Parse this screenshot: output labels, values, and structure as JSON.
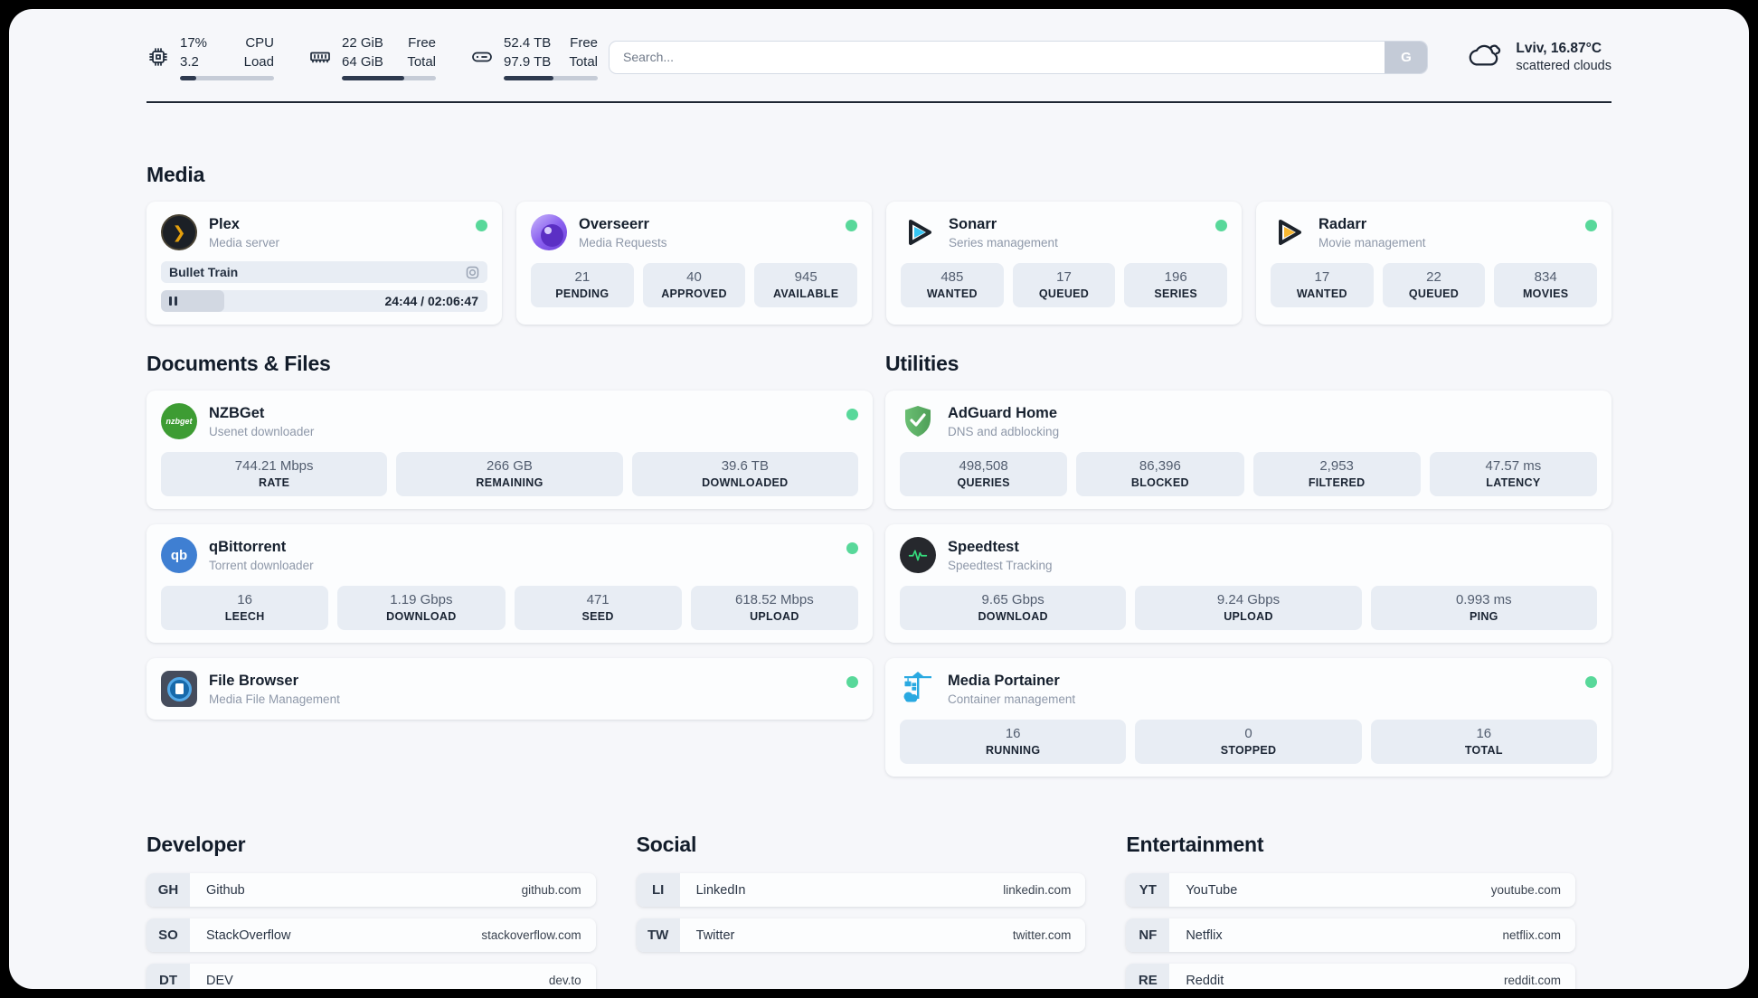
{
  "header": {
    "cpu": {
      "value_line1": "17%",
      "value_line2": "3.2",
      "label_line1": "CPU",
      "label_line2": "Load",
      "progress_pct": 17
    },
    "memory": {
      "value_line1": "22 GiB",
      "value_line2": "64 GiB",
      "label_line1": "Free",
      "label_line2": "Total",
      "progress_pct": 66
    },
    "disk": {
      "value_line1": "52.4 TB",
      "value_line2": "97.9 TB",
      "label_line1": "Free",
      "label_line2": "Total",
      "progress_pct": 53
    },
    "search": {
      "placeholder": "Search...",
      "button_label": "G"
    },
    "weather": {
      "summary": "Lviv, 16.87°C",
      "condition": "scattered clouds"
    }
  },
  "colors": {
    "status_online": "#58d89a",
    "progress_fill": "#2e3a4f",
    "plex_gold": "#e5a00d",
    "overseerr_purple": "#6d3fd8",
    "sonarr_cyan": "#36c6f4",
    "radarr_yellow": "#f7b731",
    "nzbget_green": "#3d9c33",
    "qbittorrent_blue": "#3f7fd2",
    "adguard_green": "#5fae67",
    "speedtest_green": "#35d97c",
    "portainer_blue": "#29a9e1"
  },
  "sections": {
    "media": {
      "title": "Media",
      "plex": {
        "name": "Plex",
        "subtitle": "Media server",
        "now_playing": "Bullet Train",
        "time_display": "24:44 / 02:06:47",
        "progress_pct": 19.5
      },
      "overseerr": {
        "name": "Overseerr",
        "subtitle": "Media Requests",
        "stats": [
          {
            "value": "21",
            "label": "PENDING"
          },
          {
            "value": "40",
            "label": "APPROVED"
          },
          {
            "value": "945",
            "label": "AVAILABLE"
          }
        ]
      },
      "sonarr": {
        "name": "Sonarr",
        "subtitle": "Series management",
        "stats": [
          {
            "value": "485",
            "label": "WANTED"
          },
          {
            "value": "17",
            "label": "QUEUED"
          },
          {
            "value": "196",
            "label": "SERIES"
          }
        ]
      },
      "radarr": {
        "name": "Radarr",
        "subtitle": "Movie management",
        "stats": [
          {
            "value": "17",
            "label": "WANTED"
          },
          {
            "value": "22",
            "label": "QUEUED"
          },
          {
            "value": "834",
            "label": "MOVIES"
          }
        ]
      }
    },
    "documents": {
      "title": "Documents & Files",
      "nzbget": {
        "name": "NZBGet",
        "subtitle": "Usenet downloader",
        "icon_text": "nzbget",
        "stats": [
          {
            "value": "744.21 Mbps",
            "label": "RATE"
          },
          {
            "value": "266 GB",
            "label": "REMAINING"
          },
          {
            "value": "39.6 TB",
            "label": "DOWNLOADED"
          }
        ]
      },
      "qbittorrent": {
        "name": "qBittorrent",
        "subtitle": "Torrent downloader",
        "icon_text": "qb",
        "stats": [
          {
            "value": "16",
            "label": "LEECH"
          },
          {
            "value": "1.19 Gbps",
            "label": "DOWNLOAD"
          },
          {
            "value": "471",
            "label": "SEED"
          },
          {
            "value": "618.52 Mbps",
            "label": "UPLOAD"
          }
        ]
      },
      "filebrowser": {
        "name": "File Browser",
        "subtitle": "Media File Management"
      }
    },
    "utilities": {
      "title": "Utilities",
      "adguard": {
        "name": "AdGuard Home",
        "subtitle": "DNS and adblocking",
        "stats": [
          {
            "value": "498,508",
            "label": "QUERIES"
          },
          {
            "value": "86,396",
            "label": "BLOCKED"
          },
          {
            "value": "2,953",
            "label": "FILTERED"
          },
          {
            "value": "47.57 ms",
            "label": "LATENCY"
          }
        ]
      },
      "speedtest": {
        "name": "Speedtest",
        "subtitle": "Speedtest Tracking",
        "stats": [
          {
            "value": "9.65 Gbps",
            "label": "DOWNLOAD"
          },
          {
            "value": "9.24 Gbps",
            "label": "UPLOAD"
          },
          {
            "value": "0.993 ms",
            "label": "PING"
          }
        ]
      },
      "portainer": {
        "name": "Media Portainer",
        "subtitle": "Container management",
        "stats": [
          {
            "value": "16",
            "label": "RUNNING"
          },
          {
            "value": "0",
            "label": "STOPPED"
          },
          {
            "value": "16",
            "label": "TOTAL"
          }
        ]
      }
    },
    "bookmarks": [
      {
        "title": "Developer",
        "items": [
          {
            "abbr": "GH",
            "name": "Github",
            "domain": "github.com"
          },
          {
            "abbr": "SO",
            "name": "StackOverflow",
            "domain": "stackoverflow.com"
          },
          {
            "abbr": "DT",
            "name": "DEV",
            "domain": "dev.to"
          }
        ]
      },
      {
        "title": "Social",
        "items": [
          {
            "abbr": "LI",
            "name": "LinkedIn",
            "domain": "linkedin.com"
          },
          {
            "abbr": "TW",
            "name": "Twitter",
            "domain": "twitter.com"
          }
        ]
      },
      {
        "title": "Entertainment",
        "items": [
          {
            "abbr": "YT",
            "name": "YouTube",
            "domain": "youtube.com"
          },
          {
            "abbr": "NF",
            "name": "Netflix",
            "domain": "netflix.com"
          },
          {
            "abbr": "RE",
            "name": "Reddit",
            "domain": "reddit.com"
          }
        ]
      }
    ]
  }
}
